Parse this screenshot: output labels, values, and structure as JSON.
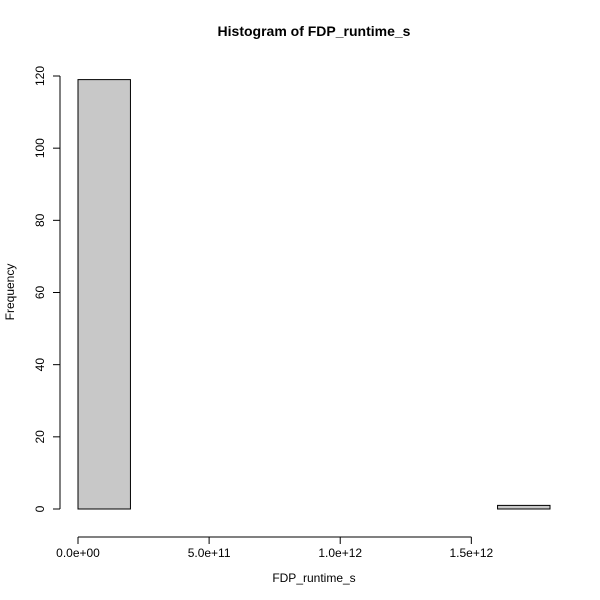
{
  "chart_data": {
    "type": "bar",
    "title": "Histogram of FDP_runtime_s",
    "xlabel": "FDP_runtime_s",
    "ylabel": "Frequency",
    "bin_edges": [
      0,
      200000000000.0,
      400000000000.0,
      600000000000.0,
      800000000000.0,
      1000000000000.0,
      1200000000000.0,
      1400000000000.0,
      1600000000000.0,
      1800000000000.0
    ],
    "values": [
      119,
      0,
      0,
      0,
      0,
      0,
      0,
      0,
      1
    ],
    "xlim": [
      0,
      1800000000000.0
    ],
    "ylim": [
      0,
      120
    ],
    "x_ticks": [
      0,
      500000000000.0,
      1000000000000.0,
      1500000000000.0
    ],
    "x_tick_labels": [
      "0.0e+00",
      "5.0e+11",
      "1.0e+12",
      "1.5e+12"
    ],
    "y_ticks": [
      0,
      20,
      40,
      60,
      80,
      100,
      120
    ],
    "y_tick_labels": [
      "0",
      "20",
      "40",
      "60",
      "80",
      "100",
      "120"
    ],
    "bar_color": "#c8c8c8",
    "grid": false,
    "legend": "none"
  }
}
